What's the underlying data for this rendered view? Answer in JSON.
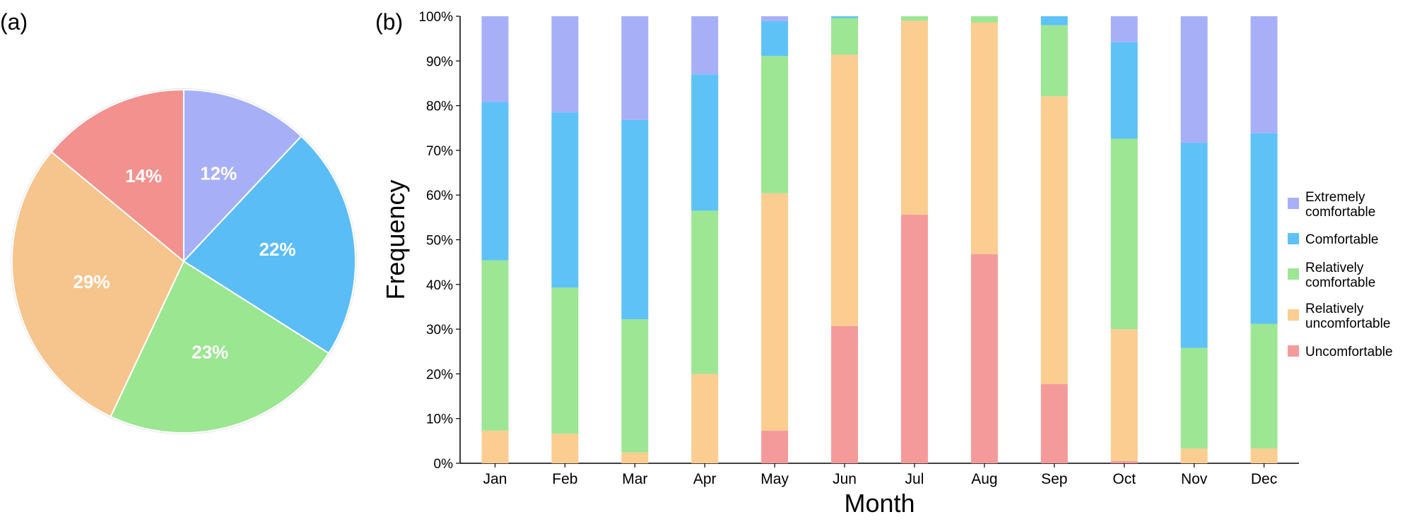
{
  "panel_labels": {
    "a": "(a)",
    "b": "(b)"
  },
  "colors": {
    "extremely_comfortable": "#a7b0f7",
    "comfortable": "#5ec2f7",
    "relatively_comfortable": "#9de694",
    "relatively_uncomfortable": "#fbcd91",
    "uncomfortable": "#f59a9a",
    "pie_red": "#f2918e",
    "pie_orange": "#f6c48d"
  },
  "chart_data": [
    {
      "type": "pie",
      "slices": [
        {
          "key": "extremely_comfortable",
          "value": 12,
          "label": "12%"
        },
        {
          "key": "comfortable",
          "value": 22,
          "label": "22%"
        },
        {
          "key": "relatively_comfortable",
          "value": 23,
          "label": "23%"
        },
        {
          "key": "relatively_uncomfortable",
          "value": 29,
          "label": "29%"
        },
        {
          "key": "uncomfortable",
          "value": 14,
          "label": "14%"
        }
      ]
    },
    {
      "type": "bar",
      "stacked": true,
      "categories": [
        "Jan",
        "Feb",
        "Mar",
        "Apr",
        "May",
        "Jun",
        "Jul",
        "Aug",
        "Sep",
        "Oct",
        "Nov",
        "Dec"
      ],
      "xlabel": "Month",
      "ylabel": "Frequency",
      "ylim": [
        0,
        100
      ],
      "yticks": [
        "0%",
        "10%",
        "20%",
        "30%",
        "40%",
        "50%",
        "60%",
        "70%",
        "80%",
        "90%",
        "100%"
      ],
      "legend_position": "right",
      "series": [
        {
          "key": "uncomfortable",
          "name": "Uncomfortable",
          "values": [
            0,
            0,
            0,
            0,
            7.3,
            30.7,
            55.6,
            46.8,
            17.7,
            0.5,
            0,
            0
          ]
        },
        {
          "key": "relatively_uncomfortable",
          "name": "Relatively\nuncomfortable",
          "values": [
            7.3,
            6.6,
            2.4,
            20,
            53.1,
            60.7,
            43.4,
            51.8,
            64.4,
            29.5,
            3.3,
            3.3
          ]
        },
        {
          "key": "relatively_comfortable",
          "name": "Relatively\ncomfortable",
          "values": [
            38.1,
            32.7,
            29.8,
            36.5,
            30.7,
            8.2,
            1,
            1.4,
            15.9,
            42.6,
            22.5,
            27.9
          ]
        },
        {
          "key": "comfortable",
          "name": "Comfortable",
          "values": [
            35.4,
            39.2,
            44.6,
            30.5,
            7.8,
            0.4,
            0,
            0,
            2.0,
            21.6,
            45.9,
            42.6
          ]
        },
        {
          "key": "extremely_comfortable",
          "name": "Extremely\ncomfortable",
          "values": [
            19.2,
            21.5,
            23.2,
            13,
            1.1,
            0,
            0,
            0,
            0,
            5.8,
            28.3,
            26.2
          ]
        }
      ],
      "legend_order": [
        "extremely_comfortable",
        "comfortable",
        "relatively_comfortable",
        "relatively_uncomfortable",
        "uncomfortable"
      ]
    }
  ]
}
